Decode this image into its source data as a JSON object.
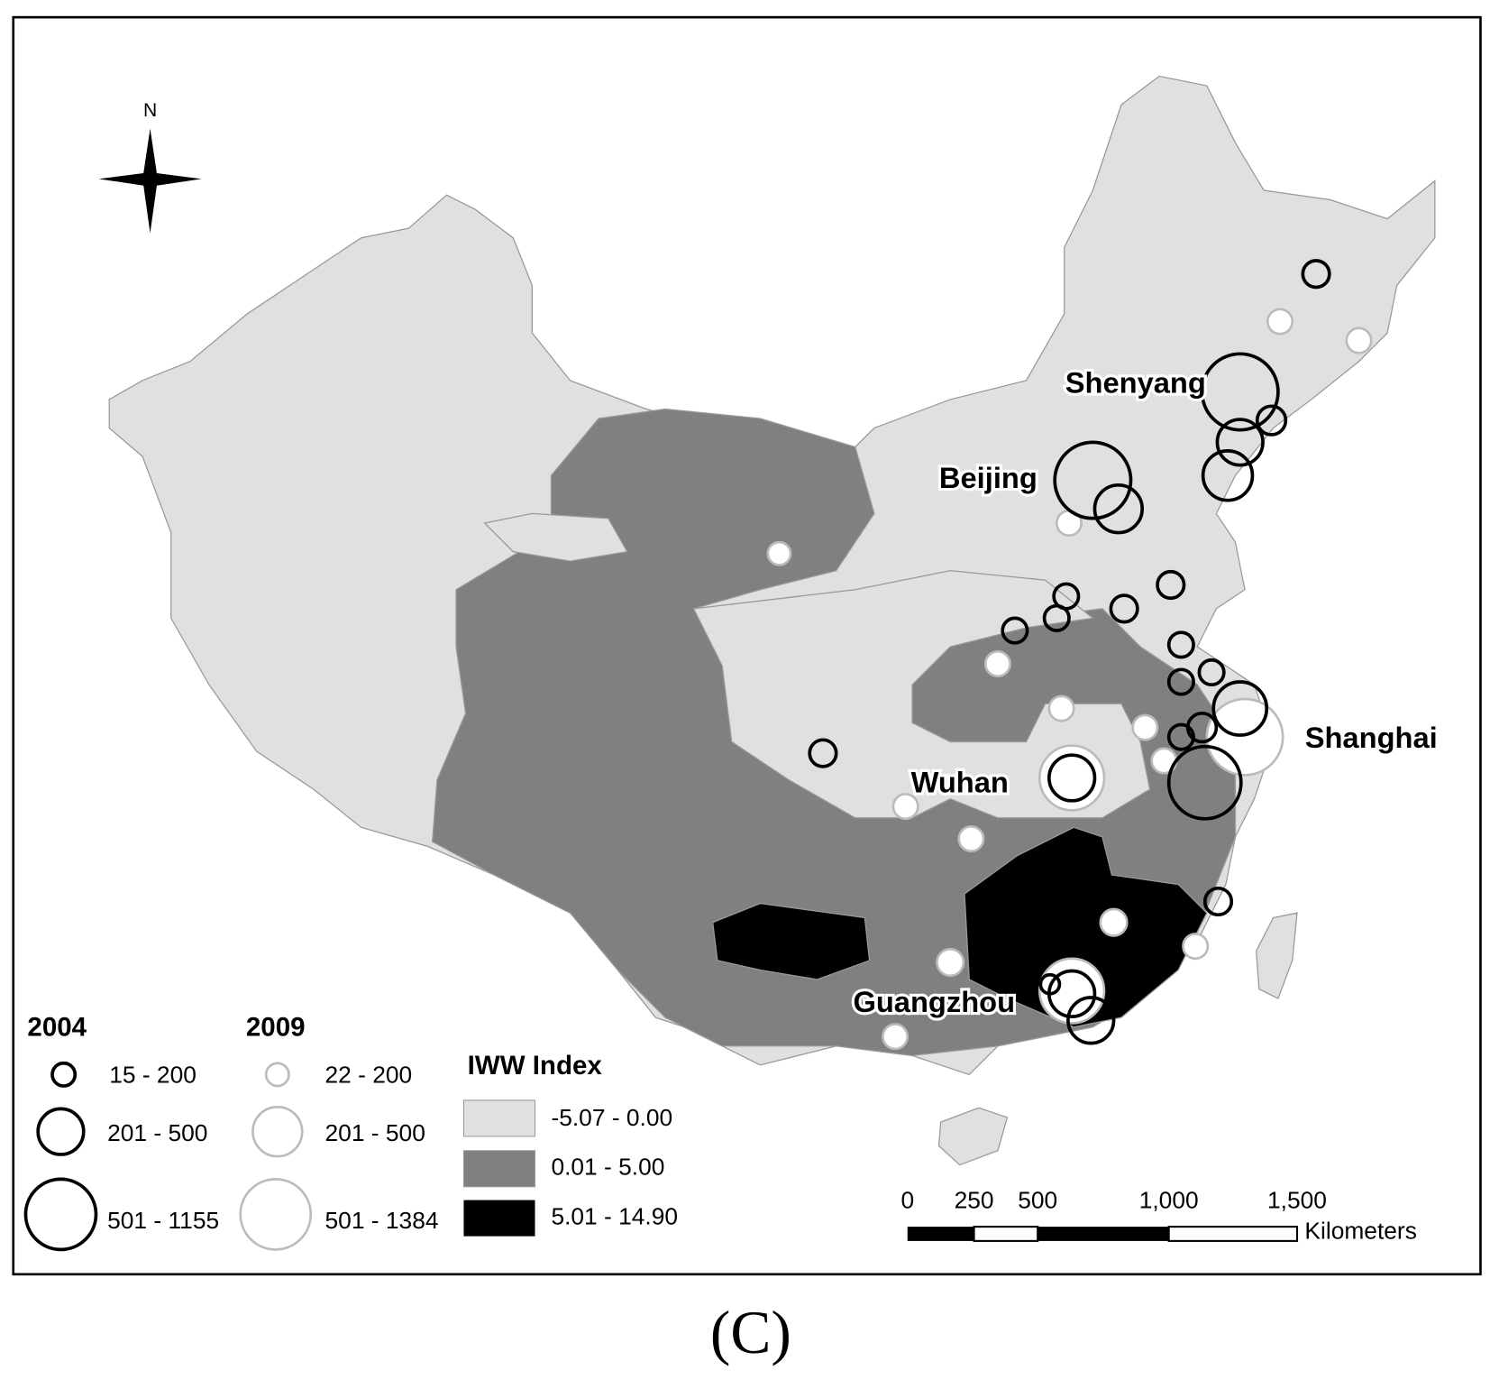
{
  "map": {
    "north_label": "N",
    "cities": [
      "Shenyang",
      "Beijing",
      "Shanghai",
      "Wuhan",
      "Guangzhou"
    ]
  },
  "legend": {
    "symbols": [
      {
        "title": "2004",
        "classes": [
          "15 - 200",
          "201 - 500",
          "501 - 1155"
        ]
      },
      {
        "title": "2009",
        "classes": [
          "22 - 200",
          "201 - 500",
          "501 - 1384"
        ]
      }
    ],
    "index": {
      "title": "IWW Index",
      "classes": [
        "-5.07 - 0.00",
        "0.01 - 5.00",
        "5.01 - 14.90"
      ]
    }
  },
  "scale_bar": {
    "labels": [
      "0",
      "250",
      "500",
      "1,000",
      "1,500"
    ],
    "unit": "Kilometers"
  },
  "caption": "(C)"
}
